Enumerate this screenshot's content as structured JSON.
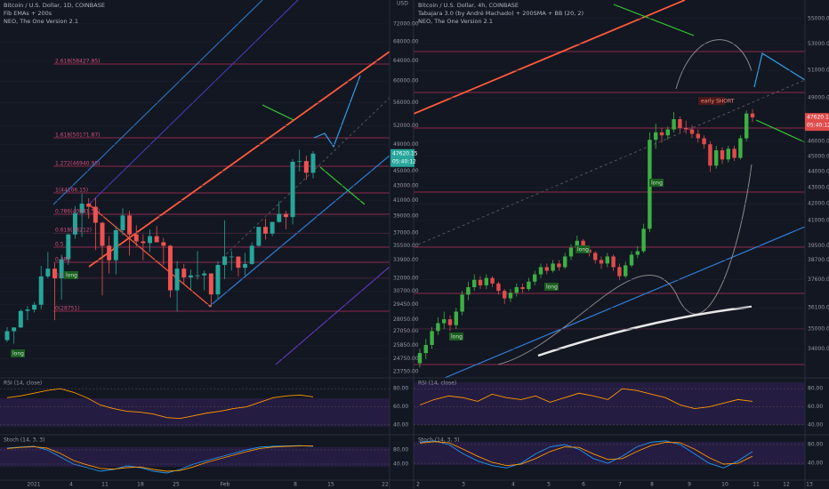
{
  "left": {
    "title": "Bitcoin / U.S. Dollar, 1D, COINBASE",
    "indicators": [
      "Fib EMAs + 200s",
      "NEO, The One Version 2.1"
    ],
    "axis_unit": "USD",
    "price_label": "47620.15",
    "countdown": "05:40:12",
    "log": true,
    "ylim": [
      23300,
      77700
    ],
    "yticks": [
      {
        "value": 72000,
        "label": "72000.00"
      },
      {
        "value": 68000,
        "label": "68000.00"
      },
      {
        "value": 64000,
        "label": "64000.00"
      },
      {
        "value": 60000,
        "label": "60000.00"
      },
      {
        "value": 56000,
        "label": "56000.00"
      },
      {
        "value": 52000,
        "label": "52000.00"
      },
      {
        "value": 49000,
        "label": "49000.00"
      },
      {
        "value": 45000,
        "label": "45000.00"
      },
      {
        "value": 43000,
        "label": "43000.00"
      },
      {
        "value": 41000,
        "label": "41000.00"
      },
      {
        "value": 39000,
        "label": "39000.00"
      },
      {
        "value": 37000,
        "label": "37000.00"
      },
      {
        "value": 35500,
        "label": "35500.00"
      },
      {
        "value": 33900,
        "label": "33900.00"
      },
      {
        "value": 32000,
        "label": "32000.00"
      },
      {
        "value": 30700,
        "label": "30700.00"
      },
      {
        "value": 29450,
        "label": "29450.00"
      },
      {
        "value": 28050,
        "label": "28050.00"
      },
      {
        "value": 27050,
        "label": "27050.00"
      },
      {
        "value": 25850,
        "label": "25850.00"
      },
      {
        "value": 24750,
        "label": "24750.00"
      },
      {
        "value": 23750,
        "label": "23750.00"
      }
    ],
    "up_color": "#26a69a",
    "down_color": "#ef5350",
    "candles": [
      [
        26281,
        27389,
        26117,
        27037
      ],
      [
        27037,
        27370,
        25987,
        27360
      ],
      [
        27360,
        28992,
        27321,
        28841
      ],
      [
        28841,
        29300,
        28000,
        28966
      ],
      [
        28966,
        29680,
        28699,
        29412
      ],
      [
        29412,
        33300,
        29000,
        32195
      ],
      [
        32195,
        34800,
        32000,
        33000
      ],
      [
        33000,
        33600,
        28000,
        32000
      ],
      [
        32000,
        34500,
        29900,
        34000
      ],
      [
        34000,
        36900,
        33400,
        36800
      ],
      [
        36800,
        40300,
        36300,
        39400
      ],
      [
        39400,
        41900,
        36500,
        40600
      ],
      [
        40600,
        41300,
        38700,
        40200
      ],
      [
        40200,
        41400,
        35000,
        38200
      ],
      [
        38200,
        38300,
        30300,
        35500
      ],
      [
        35500,
        36600,
        32500,
        33900
      ],
      [
        33900,
        37800,
        32400,
        37300
      ],
      [
        37300,
        40000,
        36700,
        39100
      ],
      [
        39100,
        39700,
        34400,
        36800
      ],
      [
        36800,
        37900,
        35400,
        36000
      ],
      [
        36000,
        36800,
        33900,
        35800
      ],
      [
        35800,
        37400,
        34800,
        36600
      ],
      [
        36600,
        37800,
        35900,
        35900
      ],
      [
        35900,
        36400,
        33400,
        35500
      ],
      [
        35500,
        35600,
        30100,
        30800
      ],
      [
        30800,
        33800,
        28800,
        33000
      ],
      [
        33000,
        33500,
        31400,
        32100
      ],
      [
        32100,
        32900,
        30900,
        32300
      ],
      [
        32300,
        34900,
        31900,
        32300
      ],
      [
        32300,
        32800,
        30800,
        32500
      ],
      [
        32500,
        32500,
        29200,
        30400
      ],
      [
        30400,
        33800,
        30000,
        33400
      ],
      [
        33400,
        38500,
        31900,
        34300
      ],
      [
        34300,
        34900,
        32800,
        34300
      ],
      [
        34300,
        34300,
        32200,
        33100
      ],
      [
        33100,
        34700,
        32300,
        33500
      ],
      [
        33500,
        35900,
        33400,
        35500
      ],
      [
        35500,
        37700,
        35400,
        37700
      ],
      [
        37700,
        38700,
        36200,
        36900
      ],
      [
        36900,
        38300,
        36600,
        38300
      ],
      [
        38300,
        40900,
        38200,
        39300
      ],
      [
        39300,
        39700,
        37400,
        38900
      ],
      [
        38900,
        46800,
        38000,
        46400
      ],
      [
        46400,
        48200,
        45000,
        46500
      ],
      [
        46500,
        47300,
        43800,
        44800
      ],
      [
        44800,
        48000,
        44000,
        47620
      ]
    ],
    "x_labels": [
      "2021",
      "4",
      "11",
      "18",
      "25",
      "Feb",
      "8",
      "15",
      "22"
    ],
    "fib_labels": [
      "2.618(58427.85)",
      "1.618(50171.87)",
      "1.272(46940.95)",
      "1(44166.15)",
      "0.786(40541.54)",
      "0.618(38212)",
      "0.5",
      "0.382",
      "0.236",
      "0(28751)"
    ],
    "signals": [
      "long",
      "long"
    ],
    "rsi": {
      "title": "RSI (14, close)",
      "ylim": [
        30,
        92
      ],
      "yticks": [
        {
          "value": 80,
          "label": "80.00"
        },
        {
          "value": 60,
          "label": "60.00"
        },
        {
          "value": 40,
          "label": "40.00"
        }
      ],
      "color": "#ff9800",
      "values": [
        70,
        72,
        75,
        78,
        80,
        76,
        70,
        62,
        58,
        55,
        54,
        52,
        48,
        47,
        50,
        53,
        55,
        58,
        60,
        65,
        70,
        72,
        73,
        71
      ]
    },
    "stoch": {
      "title": "Stoch (14, 3, 3)",
      "ylim": [
        -5,
        120
      ],
      "yticks": [
        {
          "value": 80,
          "label": "80.00"
        },
        {
          "value": 40,
          "label": "40.00"
        }
      ],
      "k_color": "#2196f3",
      "d_color": "#ff9800",
      "k": [
        85,
        88,
        90,
        80,
        60,
        40,
        30,
        20,
        25,
        35,
        30,
        20,
        15,
        25,
        40,
        50,
        60,
        70,
        80,
        88,
        90,
        91,
        92,
        90
      ],
      "d": [
        84,
        87,
        89,
        85,
        70,
        50,
        38,
        28,
        26,
        30,
        32,
        25,
        20,
        22,
        32,
        45,
        55,
        65,
        75,
        84,
        88,
        90,
        91,
        91
      ]
    }
  },
  "right": {
    "title": "Bitcoin / U.S. Dollar, 4h, COINBASE",
    "indicators": [
      "Tabajara 3.0 (by André Machado) + 200SMA + BB (20, 2)",
      "NEO, The One Version 2.1"
    ],
    "price_label": "47620.15",
    "countdown": "05:40:12",
    "log": true,
    "ylim": [
      32600,
      56500
    ],
    "yticks": [
      {
        "value": 55000,
        "label": "55000.00"
      },
      {
        "value": 53000,
        "label": "53000.00"
      },
      {
        "value": 51000,
        "label": "51000.00"
      },
      {
        "value": 49000,
        "label": "49000.00"
      },
      {
        "value": 46000,
        "label": "46000.00"
      },
      {
        "value": 45000,
        "label": "45000.00"
      },
      {
        "value": 44000,
        "label": "44000.00"
      },
      {
        "value": 43000,
        "label": "43000.00"
      },
      {
        "value": 42000,
        "label": "42000.00"
      },
      {
        "value": 41000,
        "label": "41000.00"
      },
      {
        "value": 39500,
        "label": "39500.00"
      },
      {
        "value": 38700,
        "label": "38700.00"
      },
      {
        "value": 37600,
        "label": "37600.00"
      },
      {
        "value": 36100,
        "label": "36100.00"
      },
      {
        "value": 35000,
        "label": "35000.00"
      },
      {
        "value": 34000,
        "label": "34000.00"
      }
    ],
    "up_color": "#3cb043",
    "down_color": "#e04b4b",
    "candles": [
      [
        33300,
        34000,
        33100,
        33800
      ],
      [
        33800,
        34500,
        33500,
        34200
      ],
      [
        34200,
        35100,
        34000,
        34900
      ],
      [
        34900,
        35600,
        34700,
        35300
      ],
      [
        35300,
        35900,
        35000,
        35500
      ],
      [
        35500,
        35700,
        34900,
        35200
      ],
      [
        35200,
        36100,
        35000,
        35900
      ],
      [
        35900,
        37000,
        35700,
        36800
      ],
      [
        36800,
        37500,
        36500,
        37200
      ],
      [
        37200,
        37900,
        37000,
        37600
      ],
      [
        37600,
        37800,
        37100,
        37300
      ],
      [
        37300,
        37900,
        37100,
        37700
      ],
      [
        37700,
        37800,
        37200,
        37400
      ],
      [
        37400,
        37500,
        36800,
        37000
      ],
      [
        37000,
        37100,
        36300,
        36600
      ],
      [
        36600,
        37100,
        36400,
        36900
      ],
      [
        36900,
        37400,
        36700,
        37200
      ],
      [
        37200,
        37400,
        36900,
        37100
      ],
      [
        37100,
        37700,
        37000,
        37500
      ],
      [
        37500,
        38100,
        37300,
        37900
      ],
      [
        37900,
        38500,
        37700,
        38300
      ],
      [
        38300,
        38500,
        37900,
        38100
      ],
      [
        38100,
        38700,
        38000,
        38500
      ],
      [
        38500,
        38700,
        38100,
        38300
      ],
      [
        38300,
        39100,
        38200,
        38900
      ],
      [
        38900,
        39600,
        38700,
        39400
      ],
      [
        39400,
        40100,
        39200,
        39800
      ],
      [
        39800,
        39900,
        39100,
        39300
      ],
      [
        39300,
        39500,
        38900,
        39100
      ],
      [
        39100,
        39200,
        38500,
        38700
      ],
      [
        38700,
        38900,
        38200,
        38500
      ],
      [
        38500,
        39100,
        38300,
        38900
      ],
      [
        38900,
        39000,
        38100,
        38300
      ],
      [
        38300,
        38500,
        37600,
        37800
      ],
      [
        37800,
        38600,
        37700,
        38400
      ],
      [
        38400,
        39200,
        38300,
        39000
      ],
      [
        39000,
        39500,
        38800,
        39200
      ],
      [
        39200,
        40800,
        39100,
        40500
      ],
      [
        40500,
        46600,
        40300,
        46100
      ],
      [
        46100,
        47200,
        45500,
        46600
      ],
      [
        46600,
        46900,
        45900,
        46400
      ],
      [
        46400,
        47000,
        46100,
        46800
      ],
      [
        46800,
        48000,
        46600,
        47500
      ],
      [
        47500,
        47700,
        46600,
        46900
      ],
      [
        46900,
        47400,
        46500,
        46800
      ],
      [
        46800,
        47100,
        46200,
        46500
      ],
      [
        46500,
        46800,
        45900,
        46200
      ],
      [
        46200,
        46400,
        45500,
        45800
      ],
      [
        45800,
        46000,
        44000,
        44400
      ],
      [
        44400,
        45700,
        44200,
        45400
      ],
      [
        45400,
        45600,
        44500,
        44800
      ],
      [
        44800,
        45700,
        44600,
        45500
      ],
      [
        45500,
        45700,
        44700,
        44900
      ],
      [
        44900,
        46400,
        44800,
        46200
      ],
      [
        46200,
        48100,
        46000,
        47900
      ],
      [
        47900,
        48200,
        47300,
        47620
      ]
    ],
    "x_labels": [
      "2",
      "3",
      "4",
      "5",
      "6",
      "7",
      "8",
      "9",
      "10",
      "11",
      "12",
      "13"
    ],
    "signals": [
      "long",
      "long",
      "long",
      "long"
    ],
    "annotation": "early SHORT",
    "rsi": {
      "title": "RSI (14, close)",
      "ylim": [
        30,
        92
      ],
      "yticks": [
        {
          "value": 80,
          "label": "80.00"
        },
        {
          "value": 60,
          "label": "60.00"
        },
        {
          "value": 40,
          "label": "40.00"
        }
      ],
      "color": "#ff9800",
      "values": [
        62,
        68,
        72,
        70,
        66,
        74,
        70,
        68,
        72,
        65,
        70,
        75,
        72,
        68,
        80,
        78,
        74,
        70,
        62,
        58,
        60,
        64,
        68,
        66
      ]
    },
    "stoch": {
      "title": "Stoch (14, 3, 3)",
      "ylim": [
        4,
        99
      ],
      "yticks": [
        {
          "value": 80,
          "label": "80.00"
        },
        {
          "value": 40,
          "label": "40.00"
        }
      ],
      "k_color": "#2196f3",
      "d_color": "#ff9800",
      "k": [
        85,
        88,
        80,
        60,
        45,
        35,
        30,
        40,
        60,
        75,
        80,
        70,
        50,
        40,
        55,
        75,
        85,
        88,
        80,
        60,
        40,
        30,
        45,
        65
      ],
      "d": [
        83,
        86,
        84,
        70,
        55,
        42,
        35,
        38,
        50,
        65,
        75,
        74,
        60,
        48,
        50,
        65,
        78,
        85,
        84,
        70,
        52,
        38,
        40,
        55
      ]
    }
  }
}
